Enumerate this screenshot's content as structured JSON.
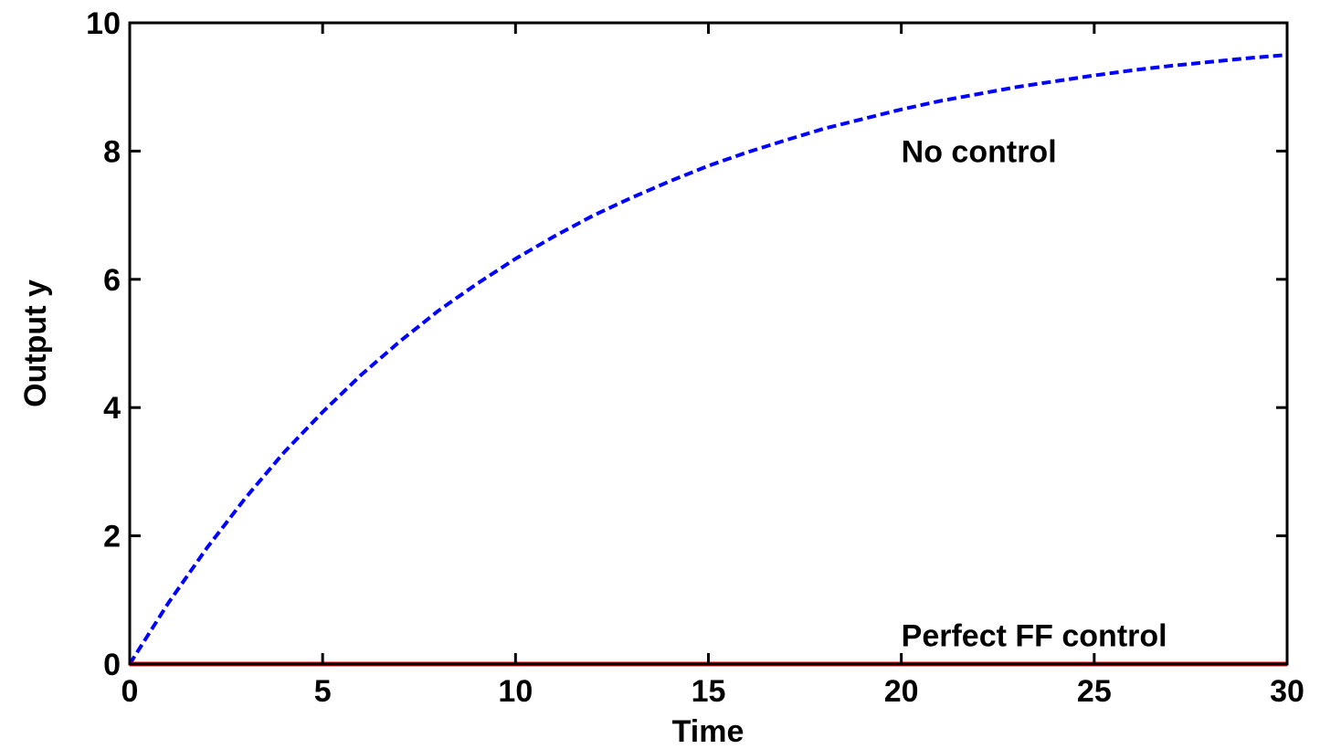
{
  "chart_data": {
    "type": "line",
    "title": "",
    "xlabel": "Time",
    "ylabel": "Output y",
    "xlim": [
      0,
      30
    ],
    "ylim": [
      0,
      10
    ],
    "xticks": [
      0,
      5,
      10,
      15,
      20,
      25,
      30
    ],
    "yticks": [
      0,
      2,
      4,
      6,
      8,
      10
    ],
    "grid": false,
    "series": [
      {
        "color": "#0000ff",
        "style": "dashed",
        "x": [
          0,
          1,
          2,
          3,
          4,
          5,
          6,
          7,
          8,
          9,
          10,
          11,
          12,
          13,
          14,
          15,
          16,
          17,
          18,
          19,
          20,
          21,
          22,
          23,
          24,
          25,
          26,
          27,
          28,
          29,
          30
        ],
        "y": [
          0,
          0.95,
          1.81,
          2.59,
          3.3,
          3.93,
          4.51,
          5.03,
          5.51,
          5.93,
          6.32,
          6.67,
          6.99,
          7.27,
          7.53,
          7.77,
          7.98,
          8.17,
          8.35,
          8.5,
          8.65,
          8.78,
          8.89,
          9.0,
          9.09,
          9.18,
          9.26,
          9.33,
          9.39,
          9.45,
          9.5
        ]
      },
      {
        "color": "#ff0000",
        "style": "solid",
        "x": [
          0,
          30
        ],
        "y": [
          0,
          0
        ]
      }
    ],
    "annotations": [
      {
        "text": "No control",
        "x": 20,
        "y": 8.0
      },
      {
        "text": "Perfect FF control",
        "x": 20,
        "y": 0.45
      }
    ]
  }
}
